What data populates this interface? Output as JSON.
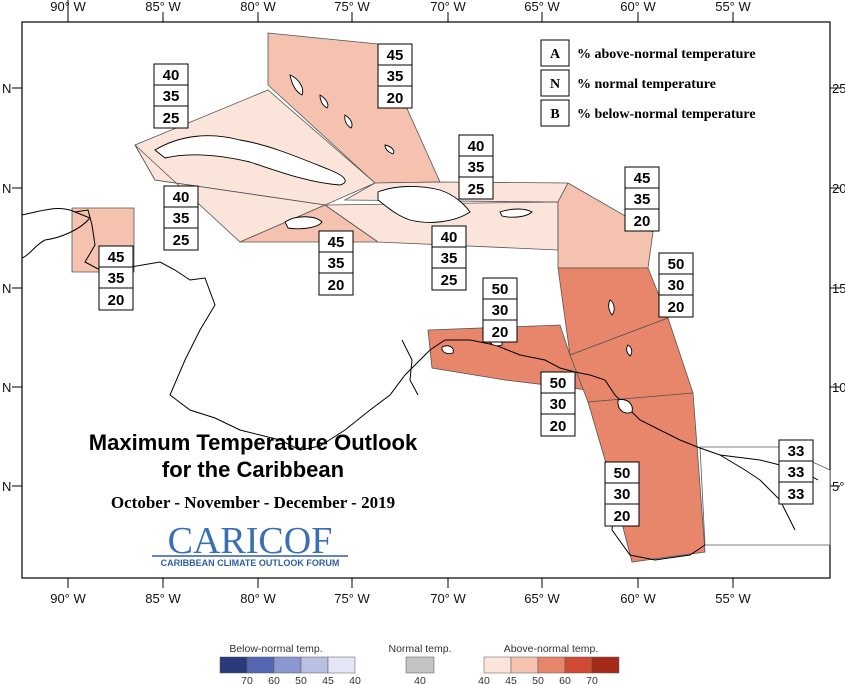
{
  "title": {
    "line1": "Maximum Temperature Outlook",
    "line2": "for the Caribbean",
    "period": "October - November - December - 2019"
  },
  "logo": {
    "main": "CARICOF",
    "sub": "CARIBBEAN CLIMATE OUTLOOK FORUM"
  },
  "axes": {
    "lon_labels": [
      "90° W",
      "85° W",
      "80° W",
      "75° W",
      "70° W",
      "65° W",
      "60° W",
      "55° W"
    ],
    "lat_left": [
      "N",
      "N",
      "N",
      "N",
      "N"
    ],
    "lat_right": [
      "25",
      "20",
      "15",
      "10",
      "5°"
    ]
  },
  "key": [
    {
      "letter": "A",
      "text": "% above-normal temperature"
    },
    {
      "letter": "N",
      "text": "% normal temperature"
    },
    {
      "letter": "B",
      "text": "% below-normal temperature"
    }
  ],
  "regions": [
    {
      "id": "bahamas",
      "probs": [
        "45",
        "35",
        "20"
      ],
      "color": "#f4c2ae"
    },
    {
      "id": "cuba-west",
      "probs": [
        "40",
        "35",
        "25"
      ],
      "color": "#fbe4da"
    },
    {
      "id": "cayman-yucatan",
      "probs": [
        "40",
        "35",
        "25"
      ],
      "color": "#fbe4da"
    },
    {
      "id": "belize",
      "probs": [
        "45",
        "35",
        "20"
      ],
      "color": "#f4c2ae"
    },
    {
      "id": "jamaica",
      "probs": [
        "45",
        "35",
        "20"
      ],
      "color": "#f4c2ae"
    },
    {
      "id": "hispaniola-north",
      "probs": [
        "40",
        "35",
        "25"
      ],
      "color": "#fbe4da"
    },
    {
      "id": "hispaniola-puertorico",
      "probs": [
        "40",
        "35",
        "25"
      ],
      "color": "#fbe4da"
    },
    {
      "id": "leeward",
      "probs": [
        "45",
        "35",
        "20"
      ],
      "color": "#f4c2ae"
    },
    {
      "id": "windward",
      "probs": [
        "50",
        "30",
        "20"
      ],
      "color": "#e8866b"
    },
    {
      "id": "abc-islands",
      "probs": [
        "50",
        "30",
        "20"
      ],
      "color": "#e8866b"
    },
    {
      "id": "trinidad",
      "probs": [
        "50",
        "30",
        "20"
      ],
      "color": "#e8866b"
    },
    {
      "id": "guianas",
      "probs": [
        "50",
        "30",
        "20"
      ],
      "color": "#e8866b"
    },
    {
      "id": "french-guiana",
      "probs": [
        "33",
        "33",
        "33"
      ],
      "color": "#ffffff"
    }
  ],
  "colorbar": {
    "below": {
      "label": "Below-normal temp.",
      "ticks": [
        "70",
        "60",
        "50",
        "45",
        "40"
      ],
      "colors": [
        "#2b3a7a",
        "#5566b3",
        "#8b97cf",
        "#b9c0e2",
        "#e3e6f4"
      ]
    },
    "normal": {
      "label": "Normal temp.",
      "ticks": [
        "40"
      ],
      "colors": [
        "#c4c4c4"
      ]
    },
    "above": {
      "label": "Above-normal temp.",
      "ticks": [
        "40",
        "45",
        "50",
        "60",
        "70"
      ],
      "colors": [
        "#fbe4da",
        "#f4c2ae",
        "#e8866b",
        "#cf4b33",
        "#a52a1a"
      ]
    }
  }
}
